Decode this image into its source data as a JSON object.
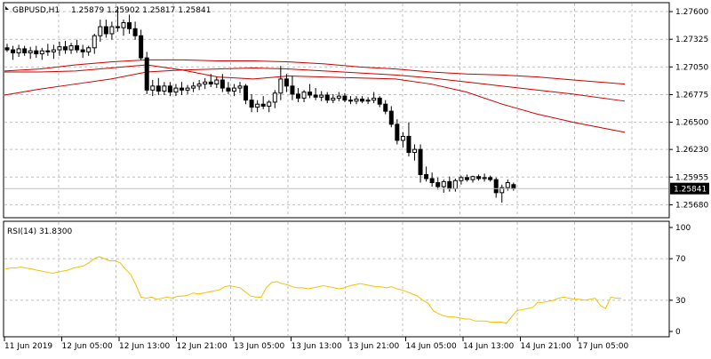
{
  "window": {
    "symbol_label": "GBPUSD,H1",
    "ohlc_label": "1.25879 1.25902 1.25817 1.25841"
  },
  "price_axis": {
    "ticks": [
      "1.27600",
      "1.27325",
      "1.27050",
      "1.26775",
      "1.26500",
      "1.26230",
      "1.25955",
      "1.25680"
    ],
    "current_price_label": "1.25841"
  },
  "rsi": {
    "label": "RSI(14) 31.8300",
    "ticks": [
      "100",
      "70",
      "30",
      "0"
    ],
    "levels": [
      70,
      30
    ]
  },
  "time_axis": {
    "labels": [
      "11 Jun 2019",
      "12 Jun 05:00",
      "12 Jun 13:00",
      "12 Jun 21:00",
      "13 Jun 05:00",
      "13 Jun 13:00",
      "13 Jun 21:00",
      "14 Jun 05:00",
      "14 Jun 13:00",
      "14 Jun 21:00",
      "17 Jun 05:00"
    ]
  },
  "colors": {
    "background": "#ffffff",
    "grid": "#c0c0c0",
    "candle": "#000000",
    "ma": "#cc0000",
    "rsi_line": "#f2c200",
    "price_line": "#c0c0c0"
  },
  "chart_data": [
    {
      "type": "candlestick",
      "title": "GBPUSD,H1",
      "ylim": [
        1.2556,
        1.2768
      ],
      "grid": true,
      "candles": [
        [
          1.2724,
          1.2728,
          1.272,
          1.2722
        ],
        [
          1.2722,
          1.2726,
          1.2712,
          1.2719
        ],
        [
          1.2719,
          1.2727,
          1.2715,
          1.2723
        ],
        [
          1.2723,
          1.2726,
          1.2716,
          1.2719
        ],
        [
          1.2719,
          1.2725,
          1.2713,
          1.2721
        ],
        [
          1.2721,
          1.2726,
          1.2714,
          1.2718
        ],
        [
          1.2718,
          1.2724,
          1.2712,
          1.2721
        ],
        [
          1.2721,
          1.2728,
          1.2716,
          1.272
        ],
        [
          1.272,
          1.2727,
          1.2713,
          1.2722
        ],
        [
          1.2722,
          1.273,
          1.2716,
          1.2725
        ],
        [
          1.2725,
          1.2731,
          1.2718,
          1.2722
        ],
        [
          1.2722,
          1.2729,
          1.2718,
          1.2726
        ],
        [
          1.2726,
          1.2732,
          1.2719,
          1.2722
        ],
        [
          1.2722,
          1.2727,
          1.2714,
          1.272
        ],
        [
          1.272,
          1.2726,
          1.2716,
          1.2724
        ],
        [
          1.2724,
          1.2738,
          1.2718,
          1.2736
        ],
        [
          1.2736,
          1.2752,
          1.273,
          1.2745
        ],
        [
          1.2745,
          1.2752,
          1.2734,
          1.2738
        ],
        [
          1.2738,
          1.275,
          1.2732,
          1.2745
        ],
        [
          1.2745,
          1.2765,
          1.274,
          1.2744
        ],
        [
          1.2744,
          1.2752,
          1.2736,
          1.2749
        ],
        [
          1.2749,
          1.2757,
          1.2738,
          1.2743
        ],
        [
          1.2743,
          1.275,
          1.2732,
          1.2736
        ],
        [
          1.2736,
          1.2742,
          1.2712,
          1.2714
        ],
        [
          1.2714,
          1.272,
          1.2678,
          1.2682
        ],
        [
          1.2682,
          1.2692,
          1.2676,
          1.2686
        ],
        [
          1.2686,
          1.2694,
          1.2677,
          1.2681
        ],
        [
          1.2681,
          1.269,
          1.2677,
          1.2686
        ],
        [
          1.2686,
          1.269,
          1.2676,
          1.268
        ],
        [
          1.268,
          1.2688,
          1.2676,
          1.2684
        ],
        [
          1.2684,
          1.269,
          1.2677,
          1.2682
        ],
        [
          1.2682,
          1.2687,
          1.2678,
          1.2684
        ],
        [
          1.2684,
          1.269,
          1.268,
          1.2686
        ],
        [
          1.2686,
          1.2692,
          1.2682,
          1.2688
        ],
        [
          1.2688,
          1.2694,
          1.2683,
          1.269
        ],
        [
          1.269,
          1.2698,
          1.2685,
          1.2688
        ],
        [
          1.2688,
          1.2695,
          1.2684,
          1.2692
        ],
        [
          1.2692,
          1.2698,
          1.268,
          1.2684
        ],
        [
          1.2684,
          1.269,
          1.2678,
          1.2681
        ],
        [
          1.2681,
          1.2688,
          1.2676,
          1.2684
        ],
        [
          1.2684,
          1.269,
          1.2679,
          1.2686
        ],
        [
          1.2686,
          1.2688,
          1.2668,
          1.2672
        ],
        [
          1.2672,
          1.2678,
          1.266,
          1.2665
        ],
        [
          1.2665,
          1.2672,
          1.266,
          1.2668
        ],
        [
          1.2668,
          1.2676,
          1.2663,
          1.2666
        ],
        [
          1.2666,
          1.2672,
          1.266,
          1.267
        ],
        [
          1.267,
          1.2682,
          1.2664,
          1.2679
        ],
        [
          1.2679,
          1.2706,
          1.2672,
          1.2693
        ],
        [
          1.2693,
          1.2698,
          1.268,
          1.2686
        ],
        [
          1.2686,
          1.2696,
          1.2672,
          1.2678
        ],
        [
          1.2678,
          1.2684,
          1.267,
          1.2674
        ],
        [
          1.2674,
          1.2682,
          1.267,
          1.268
        ],
        [
          1.268,
          1.2688,
          1.2674,
          1.2677
        ],
        [
          1.2677,
          1.2684,
          1.2672,
          1.2675
        ],
        [
          1.2675,
          1.2681,
          1.2671,
          1.2677
        ],
        [
          1.2677,
          1.268,
          1.2669,
          1.2672
        ],
        [
          1.2672,
          1.2678,
          1.2669,
          1.2674
        ],
        [
          1.2674,
          1.268,
          1.2671,
          1.2676
        ],
        [
          1.2676,
          1.2679,
          1.267,
          1.2672
        ],
        [
          1.2672,
          1.2676,
          1.2668,
          1.2671
        ],
        [
          1.2671,
          1.2676,
          1.2668,
          1.2673
        ],
        [
          1.2673,
          1.2676,
          1.2669,
          1.2671
        ],
        [
          1.2671,
          1.2675,
          1.2668,
          1.2672
        ],
        [
          1.2672,
          1.268,
          1.2669,
          1.2674
        ],
        [
          1.2674,
          1.2676,
          1.2665,
          1.2668
        ],
        [
          1.2668,
          1.2672,
          1.2658,
          1.2661
        ],
        [
          1.2661,
          1.2666,
          1.2645,
          1.2648
        ],
        [
          1.2648,
          1.2653,
          1.2628,
          1.2632
        ],
        [
          1.2632,
          1.264,
          1.2625,
          1.2636
        ],
        [
          1.2636,
          1.265,
          1.2616,
          1.262
        ],
        [
          1.262,
          1.2628,
          1.2612,
          1.2623
        ],
        [
          1.2623,
          1.2628,
          1.259,
          1.2598
        ],
        [
          1.2598,
          1.2606,
          1.2591,
          1.2594
        ],
        [
          1.2594,
          1.26,
          1.2586,
          1.259
        ],
        [
          1.259,
          1.2595,
          1.2583,
          1.2586
        ],
        [
          1.2586,
          1.2593,
          1.258,
          1.2591
        ],
        [
          1.2591,
          1.2596,
          1.2581,
          1.2584
        ],
        [
          1.2584,
          1.2594,
          1.2581,
          1.2592
        ],
        [
          1.2592,
          1.2597,
          1.2588,
          1.2595
        ],
        [
          1.2595,
          1.2598,
          1.2591,
          1.2593
        ],
        [
          1.2593,
          1.2597,
          1.259,
          1.2596
        ],
        [
          1.2596,
          1.2598,
          1.2592,
          1.2594
        ],
        [
          1.2594,
          1.2599,
          1.2591,
          1.2595
        ],
        [
          1.2595,
          1.2597,
          1.2591,
          1.2593
        ],
        [
          1.2593,
          1.2595,
          1.2575,
          1.258
        ],
        [
          1.258,
          1.2588,
          1.257,
          1.2585
        ],
        [
          1.2585,
          1.2593,
          1.2582,
          1.259
        ],
        [
          1.2588,
          1.259,
          1.2582,
          1.2584
        ]
      ],
      "moving_averages": [
        {
          "points": [
            [
              0,
              1.2701
            ],
            [
              40,
              1.2703
            ],
            [
              80,
              1.2707
            ],
            [
              120,
              1.271
            ],
            [
              160,
              1.2712
            ],
            [
              200,
              1.2712
            ],
            [
              240,
              1.2711
            ],
            [
              280,
              1.2711
            ],
            [
              320,
              1.271
            ],
            [
              360,
              1.2708
            ],
            [
              400,
              1.2705
            ],
            [
              440,
              1.2703
            ],
            [
              480,
              1.27
            ],
            [
              520,
              1.2698
            ],
            [
              560,
              1.2697
            ],
            [
              600,
              1.2695
            ],
            [
              640,
              1.2692
            ],
            [
              698,
              1.2688
            ]
          ]
        },
        {
          "points": [
            [
              0,
              1.2677
            ],
            [
              40,
              1.2683
            ],
            [
              80,
              1.2688
            ],
            [
              120,
              1.2693
            ],
            [
              160,
              1.27
            ],
            [
              200,
              1.2702
            ],
            [
              240,
              1.2703
            ],
            [
              280,
              1.2704
            ],
            [
              320,
              1.2703
            ],
            [
              360,
              1.2701
            ],
            [
              400,
              1.2699
            ],
            [
              440,
              1.2697
            ],
            [
              480,
              1.2694
            ],
            [
              520,
              1.269
            ],
            [
              560,
              1.2686
            ],
            [
              600,
              1.2682
            ],
            [
              640,
              1.2678
            ],
            [
              698,
              1.2671
            ]
          ]
        },
        {
          "points": [
            [
              0,
              1.27
            ],
            [
              40,
              1.27
            ],
            [
              80,
              1.2701
            ],
            [
              120,
              1.2704
            ],
            [
              160,
              1.2707
            ],
            [
              200,
              1.2702
            ],
            [
              240,
              1.2695
            ],
            [
              280,
              1.2693
            ],
            [
              320,
              1.2696
            ],
            [
              360,
              1.2695
            ],
            [
              400,
              1.2694
            ],
            [
              440,
              1.2693
            ],
            [
              480,
              1.2688
            ],
            [
              520,
              1.268
            ],
            [
              560,
              1.2668
            ],
            [
              600,
              1.2658
            ],
            [
              640,
              1.265
            ],
            [
              698,
              1.264
            ]
          ]
        }
      ]
    },
    {
      "type": "line",
      "title": "RSI(14) 31.8300",
      "ylim": [
        0,
        100
      ],
      "levels": [
        70,
        30
      ],
      "grid": true,
      "values": [
        60,
        61,
        61,
        62,
        61,
        60,
        59,
        58,
        57,
        56,
        57,
        58,
        59,
        61,
        62,
        63,
        66,
        70,
        72,
        70,
        68,
        68,
        66,
        60,
        55,
        45,
        33,
        32,
        33,
        31,
        32,
        33,
        32,
        34,
        34,
        35,
        37,
        36,
        37,
        38,
        39,
        40,
        43,
        44,
        43,
        42,
        38,
        34,
        33,
        33,
        42,
        47,
        48,
        46,
        45,
        43,
        42,
        42,
        41,
        42,
        43,
        44,
        43,
        42,
        41,
        42,
        44,
        45,
        46,
        45,
        44,
        43,
        43,
        42,
        43,
        41,
        40,
        38,
        36,
        34,
        30,
        27,
        20,
        17,
        15,
        14,
        14,
        13,
        12,
        12,
        10,
        10,
        10,
        9,
        9,
        9,
        8,
        14,
        20,
        21,
        22,
        23,
        28,
        28,
        29,
        30,
        32,
        33,
        32,
        31,
        31,
        30,
        31,
        32,
        25,
        22,
        33,
        32,
        31.83
      ]
    }
  ]
}
